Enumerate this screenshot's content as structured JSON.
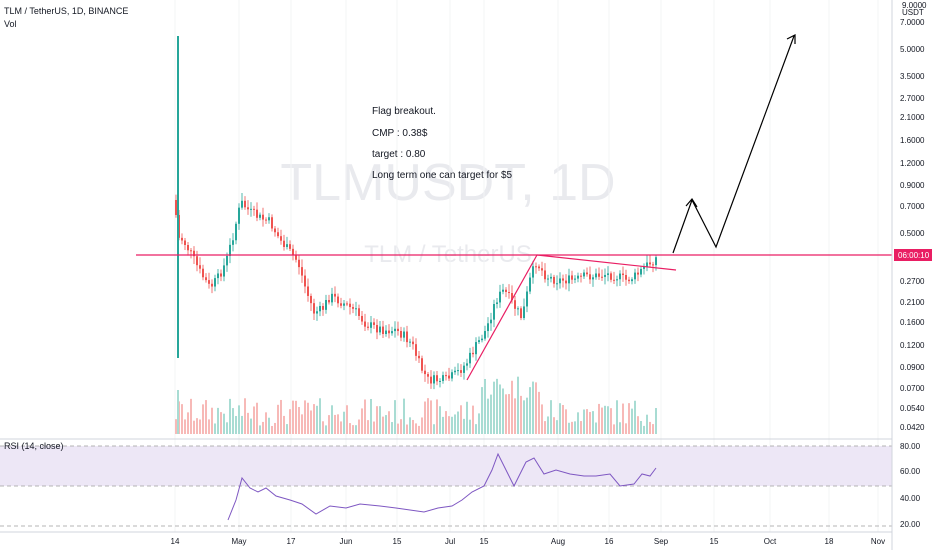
{
  "header": {
    "symbol_line": "TLM / TetherUS, 1D, BINANCE",
    "vol_label": "Vol",
    "rsi_label": "RSI (14, close)"
  },
  "watermark": {
    "ticker": "TLMUSDT, 1D",
    "pair": "TLM / TetherUS"
  },
  "price_axis": {
    "currency": "USDT",
    "top_label": "9.0000",
    "labels": [
      "7.0000",
      "5.0000",
      "3.5000",
      "2.7000",
      "2.1000",
      "1.6000",
      "1.2000",
      "0.9000",
      "0.7000",
      "0.5000",
      "0.2700",
      "0.2100",
      "0.1600",
      "0.1200",
      "0.0900",
      "0.0700",
      "0.0540",
      "0.0420"
    ],
    "current_time_badge": "06:00:10"
  },
  "rsi_axis": {
    "labels": [
      "80.00",
      "60.00",
      "40.00",
      "20.00"
    ]
  },
  "time_axis": {
    "labels": [
      "14",
      "May",
      "17",
      "Jun",
      "15",
      "Jul",
      "15",
      "Aug",
      "16",
      "Sep",
      "15",
      "Oct",
      "18",
      "Nov"
    ]
  },
  "annotations": {
    "line1": "Flag breakout.",
    "line2": "CMP : 0.38$",
    "line3": "target : 0.80",
    "line4": "Long term one can target for $5"
  },
  "colors": {
    "up": "#26a69a",
    "down": "#ef5350",
    "resistance": "#e91e63",
    "rsi_line": "#7e57c2",
    "rsi_band": "#ede7f6"
  },
  "chart_data": {
    "type": "candlestick",
    "scale": "log",
    "price_levels": {
      "resistance": 0.38,
      "cmp": 0.38,
      "target": 0.8,
      "long_term_target": 5
    },
    "rsi_levels": [
      80,
      50,
      20
    ]
  }
}
